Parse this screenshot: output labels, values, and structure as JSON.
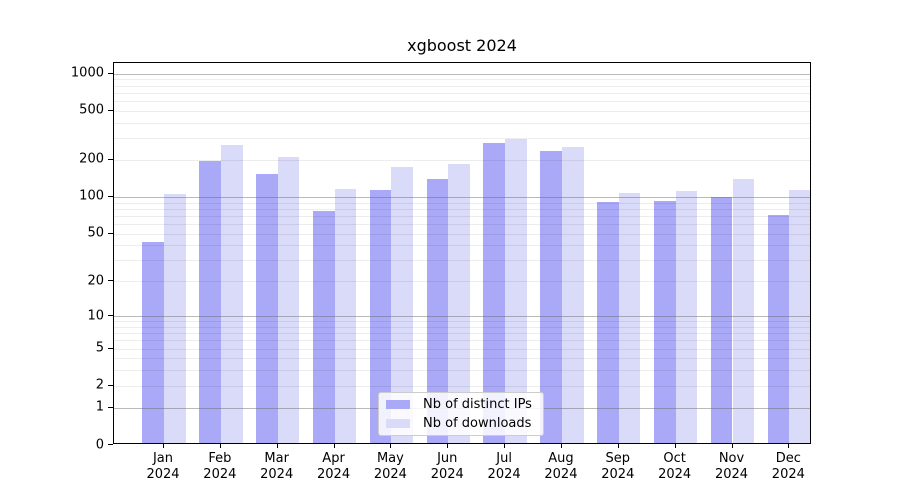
{
  "title": "xgboost 2024",
  "chart_data": {
    "type": "bar",
    "categories": [
      "Jan 2024",
      "Feb 2024",
      "Mar 2024",
      "Apr 2024",
      "May 2024",
      "Jun 2024",
      "Jul 2024",
      "Aug 2024",
      "Sep 2024",
      "Oct 2024",
      "Nov 2024",
      "Dec 2024"
    ],
    "series": [
      {
        "name": "Nb of distinct IPs",
        "color": "#a9a9f7",
        "values": [
          43,
          197,
          153,
          77,
          114,
          141,
          276,
          234,
          91,
          93,
          100,
          71
        ]
      },
      {
        "name": "Nb of downloads",
        "color": "#dadaf9",
        "values": [
          105,
          264,
          213,
          116,
          174,
          185,
          297,
          255,
          108,
          112,
          140,
          114
        ]
      }
    ],
    "xlabel": "",
    "ylabel": "",
    "yscale": "log1p",
    "yticks": [
      0,
      1,
      2,
      5,
      10,
      20,
      50,
      100,
      200,
      500,
      1000
    ],
    "ylim": [
      0,
      1218
    ],
    "grid": "major-dark-minor-faint",
    "legend_position": "lower center"
  },
  "colors": {
    "major_grid": "#b0b0b0",
    "minor_grid": "#ebebeb",
    "spine": "#000000",
    "background": "#ffffff"
  }
}
